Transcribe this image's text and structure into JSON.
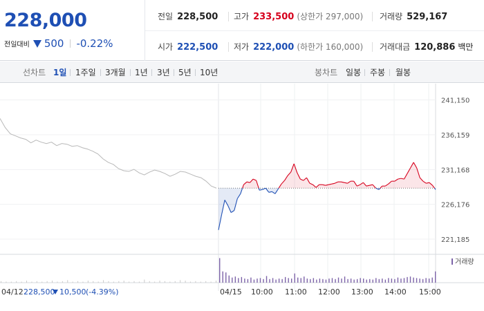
{
  "header": {
    "current_price": "228,000",
    "change_label": "전일대비",
    "change_amount": "500",
    "change_rate": "-0.22%",
    "stats": {
      "prev_close": {
        "label": "전일",
        "value": "228,500"
      },
      "high": {
        "label": "고가",
        "value": "233,500",
        "sub": "(상한가 297,000)"
      },
      "volume": {
        "label": "거래량",
        "value": "529,167"
      },
      "open": {
        "label": "시가",
        "value": "222,500"
      },
      "low": {
        "label": "저가",
        "value": "222,000",
        "sub": "(하한가 160,000)"
      },
      "trade_value": {
        "label": "거래대금",
        "value": "120,886",
        "unit": "백만"
      }
    }
  },
  "line_chart_bar": {
    "label": "선차트",
    "periods": [
      "1일",
      "1주일",
      "3개월",
      "1년",
      "3년",
      "5년",
      "10년"
    ],
    "active": "1일"
  },
  "candle_chart_bar": {
    "label": "봉차트",
    "periods": [
      "일봉",
      "주봉",
      "월봉"
    ]
  },
  "colors": {
    "up": "#d6001c",
    "down": "#1e4fb4",
    "prev": "#b8b8b8",
    "volume": "#7c63a8"
  },
  "chart_data": {
    "type": "line",
    "ylim": [
      219500,
      243000
    ],
    "y_ticks": [
      "241,150",
      "236,159",
      "231,168",
      "226,176",
      "221,185"
    ],
    "y_tick_values": [
      241150,
      236159,
      231168,
      226176,
      221185
    ],
    "reference_price": 228500,
    "prev_day": {
      "date": "04/12",
      "close": "228,500",
      "change": "10,500",
      "change_rate": "(-4.39%)",
      "values": [
        238500,
        237200,
        236300,
        236000,
        235700,
        235500,
        235000,
        235400,
        235100,
        234900,
        235100,
        234600,
        234900,
        234800,
        234500,
        234600,
        234300,
        234100,
        233800,
        233400,
        232700,
        232200,
        231900,
        231300,
        231000,
        230900,
        231200,
        230700,
        230400,
        230800,
        231100,
        230900,
        230600,
        230200,
        230500,
        230900,
        230800,
        230500,
        230200,
        230000,
        229500,
        228800,
        228500
      ]
    },
    "today": {
      "date": "04/15",
      "time_labels": [
        "10:00",
        "11:00",
        "12:00",
        "13:00",
        "14:00",
        "15:00"
      ],
      "values": [
        222500,
        224700,
        226800,
        226000,
        225000,
        225300,
        227000,
        227700,
        229000,
        229400,
        229300,
        229800,
        229600,
        228200,
        228300,
        228500,
        227900,
        228000,
        227700,
        228400,
        229100,
        229600,
        230300,
        230800,
        232000,
        230700,
        229800,
        229600,
        230000,
        229200,
        229000,
        228600,
        229000,
        229000,
        228900,
        229000,
        229100,
        229200,
        229400,
        229400,
        229300,
        229200,
        229500,
        229500,
        228800,
        229000,
        229300,
        228800,
        228900,
        229000,
        228500,
        228300,
        228800,
        228800,
        229100,
        229500,
        229500,
        229800,
        229900,
        229800,
        230600,
        231400,
        232200,
        231400,
        230000,
        229500,
        229200,
        229300,
        228900,
        228300
      ]
    },
    "volume": {
      "legend": "거래량",
      "prev_day": [
        3,
        2,
        2,
        3,
        2,
        4,
        2,
        3,
        2,
        3,
        4,
        2,
        3,
        5,
        2,
        3,
        2,
        4,
        3,
        2,
        5,
        3,
        2,
        3,
        4,
        2,
        3,
        2,
        6,
        3,
        2,
        4,
        3,
        2,
        3,
        5,
        4,
        2,
        3,
        2,
        3,
        2,
        4
      ],
      "today": [
        48,
        22,
        20,
        14,
        10,
        12,
        9,
        11,
        8,
        7,
        10,
        6,
        8,
        9,
        7,
        13,
        7,
        9,
        6,
        8,
        7,
        11,
        9,
        8,
        18,
        10,
        9,
        12,
        8,
        7,
        9,
        6,
        8,
        7,
        6,
        8,
        9,
        7,
        10,
        8,
        12,
        7,
        8,
        6,
        7,
        9,
        8,
        6,
        7,
        6,
        9,
        7,
        8,
        6,
        9,
        8,
        7,
        10,
        8,
        9,
        11,
        12,
        10,
        9,
        8,
        7,
        9,
        8,
        10,
        22
      ]
    }
  }
}
